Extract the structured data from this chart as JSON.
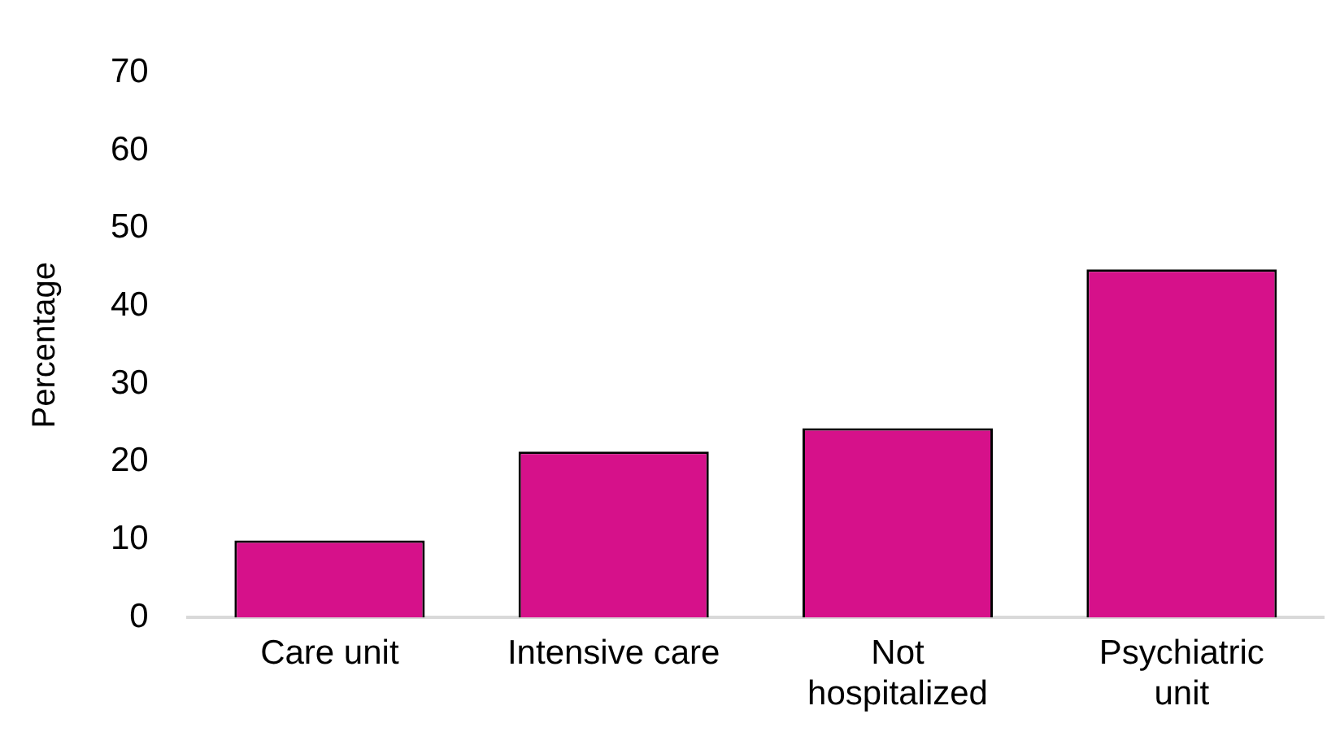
{
  "chart_data": {
    "type": "bar",
    "ylabel": "Percentage",
    "categories": [
      "Care unit",
      "Intensive care",
      "Not hospitalized",
      "Psychiatric unit"
    ],
    "values": [
      9.9,
      21.3,
      24.3,
      44.7
    ],
    "color": "#d6118a",
    "ylim": [
      0,
      70
    ],
    "yticks": [
      0,
      10,
      20,
      30,
      40,
      50,
      60,
      70
    ],
    "grid": false,
    "legend": false
  }
}
